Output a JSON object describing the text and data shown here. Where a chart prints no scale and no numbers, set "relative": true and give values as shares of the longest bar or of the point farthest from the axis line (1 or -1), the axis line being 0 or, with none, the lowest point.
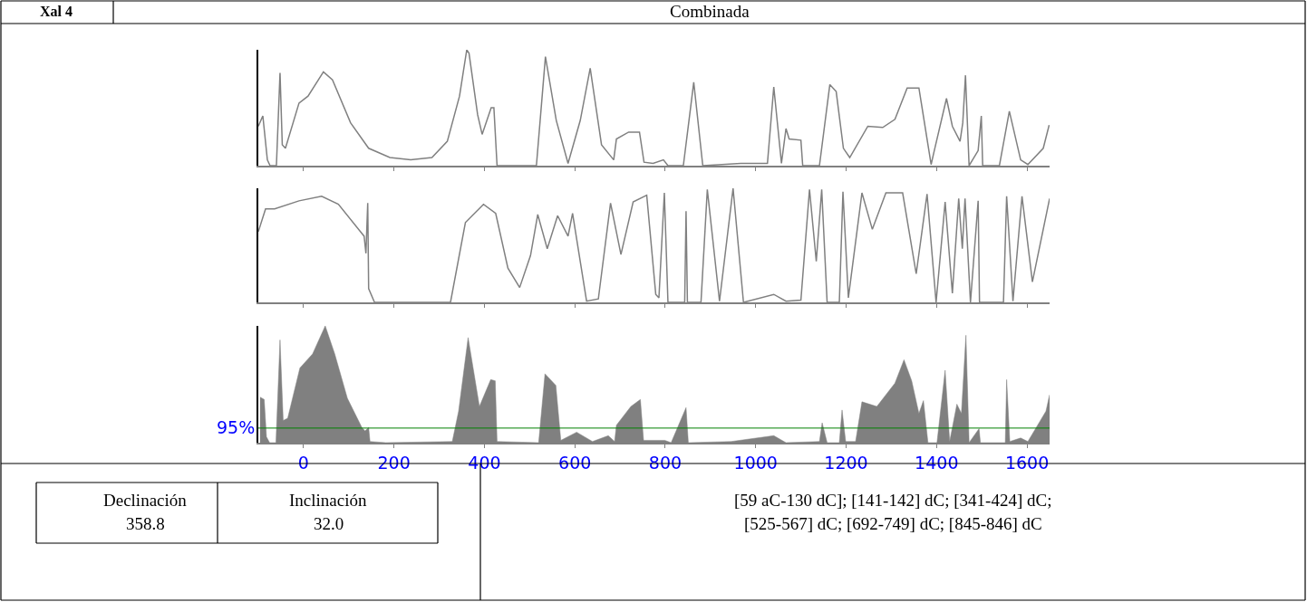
{
  "chart_data": [
    {
      "type": "line",
      "title": "Combinada",
      "annotations": [
        "Xal 4"
      ],
      "relative": true,
      "xlim": [
        -100,
        1650
      ],
      "xticks": [
        0,
        200,
        400,
        600,
        800,
        1000,
        1200,
        1400,
        1600
      ],
      "tick_labels": false,
      "x": [
        -100,
        -90,
        -80,
        -74,
        -60,
        -52,
        -47,
        -40,
        -10,
        10,
        44,
        64,
        104,
        144,
        191,
        237,
        284,
        318,
        345,
        361,
        366,
        385,
        395,
        415,
        421,
        428,
        515,
        535,
        559,
        585,
        612,
        634,
        659,
        686,
        692,
        719,
        743,
        753,
        773,
        796,
        806,
        840,
        863,
        883,
        967,
        1026,
        1040,
        1057,
        1067,
        1074,
        1100,
        1104,
        1141,
        1164,
        1178,
        1194,
        1208,
        1248,
        1281,
        1308,
        1335,
        1361,
        1381,
        1388,
        1395,
        1422,
        1435,
        1452,
        1458,
        1464,
        1472,
        1492,
        1499,
        1502,
        1539,
        1561,
        1586,
        1602,
        1636,
        1649
      ],
      "series": [
        {
          "color": "#808080",
          "values": [
            0.34,
            0.43,
            0.05,
            0,
            0,
            0.8,
            0.18,
            0.15,
            0.54,
            0.6,
            0.81,
            0.74,
            0.37,
            0.15,
            0.07,
            0.05,
            0.07,
            0.21,
            0.6,
            1.0,
            0.97,
            0.44,
            0.27,
            0.5,
            0.5,
            0,
            0,
            0.94,
            0.39,
            0.02,
            0.39,
            0.84,
            0.18,
            0.05,
            0.23,
            0.29,
            0.29,
            0.03,
            0.02,
            0.05,
            0,
            0,
            0.72,
            0,
            0.02,
            0.02,
            0.68,
            0.02,
            0.32,
            0.23,
            0.22,
            0,
            0,
            0.7,
            0.64,
            0.15,
            0.07,
            0.34,
            0.33,
            0.4,
            0.67,
            0.67,
            0.18,
            0.01,
            0.13,
            0.58,
            0.34,
            0.21,
            0.37,
            0.78,
            0,
            0.13,
            0.43,
            0,
            0,
            0.47,
            0.05,
            0.01,
            0.15,
            0.35
          ]
        }
      ]
    },
    {
      "type": "line",
      "relative": true,
      "xlim": [
        -100,
        1650
      ],
      "xticks": [
        0,
        200,
        400,
        600,
        800,
        1000,
        1200,
        1400,
        1600
      ],
      "tick_labels": false,
      "x": [
        -100,
        -84,
        -64,
        -10,
        40,
        77,
        134,
        138,
        142,
        144,
        157,
        325,
        358,
        398,
        425,
        452,
        478,
        502,
        518,
        539,
        562,
        585,
        595,
        626,
        652,
        679,
        702,
        729,
        759,
        779,
        786,
        798,
        806,
        843,
        846,
        849,
        879,
        893,
        920,
        950,
        973,
        1040,
        1067,
        1100,
        1119,
        1134,
        1146,
        1158,
        1185,
        1193,
        1205,
        1235,
        1258,
        1288,
        1325,
        1355,
        1379,
        1399,
        1419,
        1435,
        1449,
        1457,
        1463,
        1475,
        1492,
        1495,
        1548,
        1555,
        1569,
        1589,
        1612,
        1650
      ],
      "series": [
        {
          "color": "#808080",
          "values": [
            0.62,
            0.82,
            0.82,
            0.89,
            0.93,
            0.86,
            0.58,
            0.43,
            0.87,
            0.12,
            0,
            0,
            0.7,
            0.86,
            0.78,
            0.3,
            0.13,
            0.41,
            0.77,
            0.47,
            0.76,
            0.58,
            0.78,
            0.01,
            0.03,
            0.87,
            0.42,
            0.88,
            0.94,
            0.07,
            0.04,
            0.96,
            0,
            0,
            0.8,
            0,
            0,
            0.99,
            0.01,
            1.0,
            0,
            0.07,
            0.01,
            0.02,
            0.99,
            0.36,
            0.99,
            0,
            0,
            0.97,
            0.04,
            0.96,
            0.64,
            0.96,
            0.96,
            0.25,
            0.95,
            0,
            0.88,
            0.08,
            0.91,
            0.47,
            0.91,
            0,
            0.89,
            0,
            0,
            0.93,
            0.01,
            0.93,
            0.18,
            0.91
          ]
        }
      ]
    },
    {
      "type": "area",
      "relative": true,
      "xlim": [
        -100,
        1650
      ],
      "xticks": [
        0,
        200,
        400,
        600,
        800,
        1000,
        1200,
        1400,
        1600
      ],
      "tick_labels": "x",
      "ref_lines": [
        {
          "axis": "y",
          "value": 0.125,
          "color": "#008000"
        }
      ],
      "annotations": [
        "95%",
        "Declinación",
        "Inclinación",
        "358.8",
        "32.0",
        "[59 aC-130 dC]; [141-142] dC; [341-424] dC;",
        "[525-567] dC; [692-749] dC; [845-846] dC"
      ],
      "x": [
        -96,
        -87,
        -82,
        -75,
        -61,
        -52,
        -45,
        -35,
        -8,
        20,
        48,
        69,
        97,
        129,
        136,
        144,
        147,
        182,
        329,
        343,
        364,
        389,
        414,
        424,
        428,
        520,
        534,
        558,
        569,
        604,
        639,
        674,
        688,
        692,
        724,
        745,
        752,
        799,
        813,
        846,
        851,
        946,
        1040,
        1067,
        1141,
        1147,
        1158,
        1185,
        1191,
        1199,
        1221,
        1235,
        1268,
        1308,
        1328,
        1345,
        1361,
        1371,
        1381,
        1401,
        1419,
        1429,
        1445,
        1455,
        1465,
        1472,
        1494,
        1497,
        1552,
        1555,
        1562,
        1586,
        1602,
        1642,
        1650
      ],
      "series": [
        {
          "color": "#808080",
          "values": [
            0.39,
            0.37,
            0.05,
            0,
            0,
            0.88,
            0.19,
            0.21,
            0.64,
            0.76,
            1.0,
            0.76,
            0.38,
            0.13,
            0.1,
            0.13,
            0.01,
            0,
            0.01,
            0.27,
            0.9,
            0.31,
            0.54,
            0.53,
            0.01,
            0,
            0.59,
            0.49,
            0.02,
            0.09,
            0.01,
            0.06,
            0.01,
            0.15,
            0.31,
            0.37,
            0.02,
            0.02,
            0,
            0.3,
            0,
            0.01,
            0.06,
            0,
            0.01,
            0.17,
            0,
            0,
            0.28,
            0.01,
            0.01,
            0.35,
            0.31,
            0.51,
            0.71,
            0.53,
            0.25,
            0.36,
            0,
            0,
            0.62,
            0.01,
            0.33,
            0.25,
            0.92,
            0,
            0.12,
            0,
            0,
            0.54,
            0.01,
            0.04,
            0.01,
            0.27,
            0.41
          ]
        }
      ]
    }
  ]
}
